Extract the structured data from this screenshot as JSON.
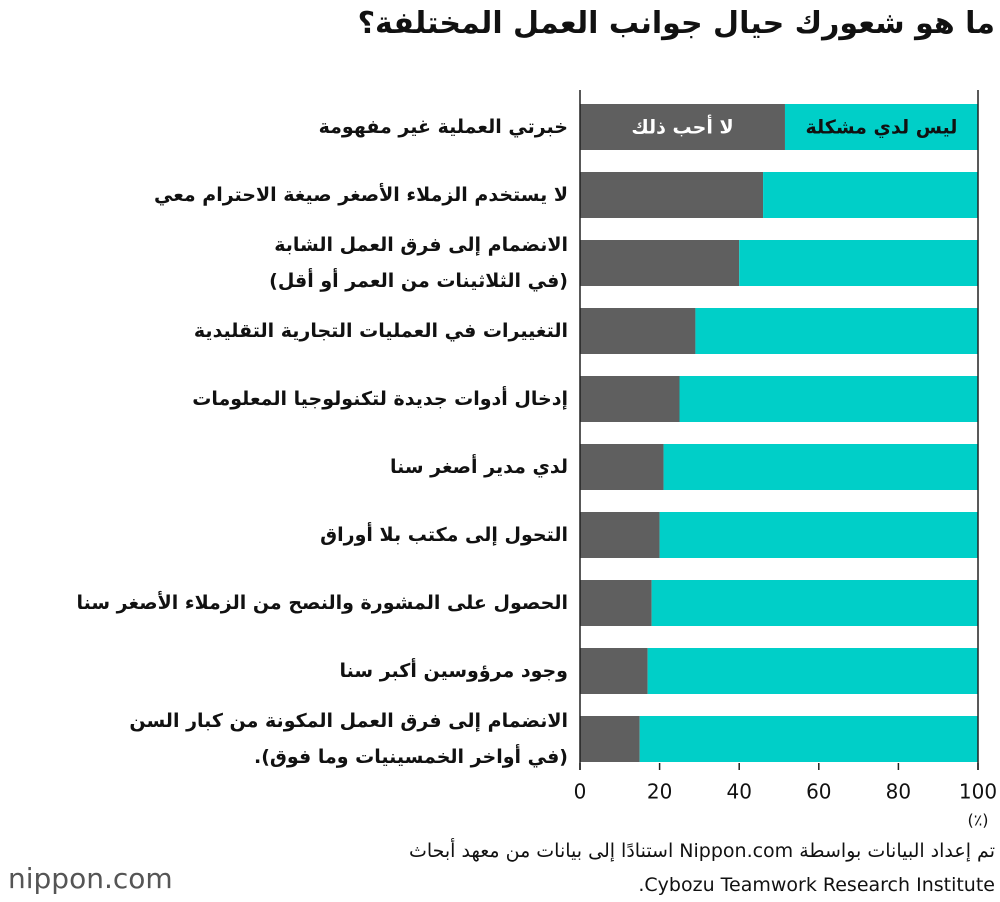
{
  "chart_data": {
    "type": "stacked_bar_horizontal",
    "title": "ما هو شعورك حيال جوانب العمل المختلفة؟",
    "categories": [
      "خبرتي العملية غير مفهومة",
      "لا يستخدم الزملاء الأصغر صيغة الاحترام معي",
      "الانضمام إلى فرق العمل الشابة\n(في الثلاثينات من العمر أو أقل)",
      "التغييرات في العمليات التجارية التقليدية",
      "إدخال أدوات جديدة لتكنولوجيا المعلومات",
      "لدي مدير أصغر سنا",
      "التحول إلى مكتب بلا أوراق",
      "الحصول على المشورة والنصح من الزملاء الأصغر سنا",
      "وجود مرؤوسين أكبر سنا",
      "الانضمام إلى فرق العمل المكونة من كبار السن\n(في أواخر الخمسينيات وما فوق)."
    ],
    "series": [
      {
        "name": "لا أحب ذلك",
        "color": "#5f5f5f",
        "values": [
          51.5,
          46,
          40,
          29,
          25,
          21,
          20,
          18,
          17,
          15
        ]
      },
      {
        "name": "ليس لدي مشكلة",
        "color": "#00cfc8",
        "values": [
          48.5,
          54,
          60,
          71,
          75,
          79,
          80,
          82,
          83,
          85
        ]
      }
    ],
    "xlim": [
      0,
      100
    ],
    "xticks": [
      0,
      20,
      40,
      60,
      80,
      100
    ],
    "x_unit": "(٪)",
    "source": "تم إعداد البيانات بواسطة Nippon.com استنادًا إلى بيانات من معهد أبحاث\nCybozu Teamwork Research Institute.",
    "logo": "nippon.com"
  }
}
